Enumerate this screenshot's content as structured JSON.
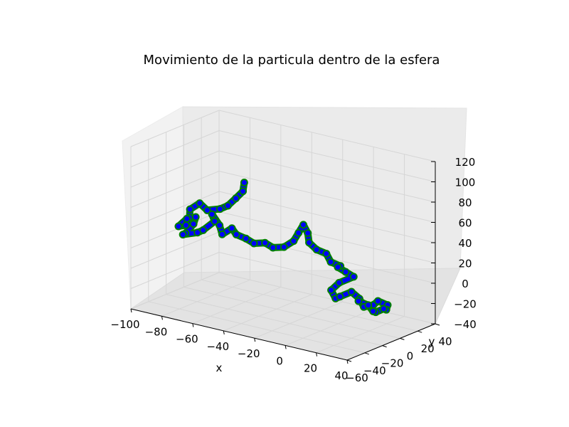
{
  "chart_data": {
    "type": "line",
    "projection": "3d",
    "title": "Movimiento de la particula dentro de la esfera",
    "xlabel": "x",
    "ylabel": "y",
    "zlabel": "",
    "xlim": [
      -100,
      40
    ],
    "ylim": [
      -60,
      40
    ],
    "zlim": [
      -40,
      120
    ],
    "xticks": [
      "−100",
      "−80",
      "−60",
      "−40",
      "−20",
      "0",
      "20",
      "40"
    ],
    "yticks": [
      "−60",
      "−40",
      "−20",
      "0",
      "20",
      "40"
    ],
    "zticks": [
      "−40",
      "−20",
      "0",
      "20",
      "40",
      "60",
      "80",
      "100",
      "120"
    ],
    "grid": true,
    "legend": "none",
    "series": [
      {
        "style": "line",
        "color": "#0000ff",
        "marker_edge_color": "#008000",
        "points": [
          [
            -58,
            -5,
            80
          ],
          [
            -60,
            -3,
            70
          ],
          [
            -64,
            -4,
            62
          ],
          [
            -68,
            -6,
            54
          ],
          [
            -72,
            -8,
            50
          ],
          [
            -78,
            -12,
            48
          ],
          [
            -84,
            -10,
            52
          ],
          [
            -88,
            -14,
            46
          ],
          [
            -86,
            -18,
            40
          ],
          [
            -90,
            -14,
            36
          ],
          [
            -92,
            -20,
            30
          ],
          [
            -86,
            -22,
            34
          ],
          [
            -82,
            -18,
            42
          ],
          [
            -80,
            -24,
            38
          ],
          [
            -84,
            -26,
            28
          ],
          [
            -88,
            -22,
            24
          ],
          [
            -82,
            -16,
            26
          ],
          [
            -76,
            -20,
            32
          ],
          [
            -72,
            -14,
            40
          ],
          [
            -76,
            -10,
            44
          ],
          [
            -70,
            -12,
            36
          ],
          [
            -66,
            -16,
            30
          ],
          [
            -62,
            -12,
            36
          ],
          [
            -58,
            -14,
            32
          ],
          [
            -54,
            -10,
            28
          ],
          [
            -50,
            -8,
            24
          ],
          [
            -44,
            -6,
            26
          ],
          [
            -40,
            -4,
            22
          ],
          [
            -34,
            -2,
            24
          ],
          [
            -30,
            2,
            30
          ],
          [
            -28,
            4,
            38
          ],
          [
            -26,
            6,
            46
          ],
          [
            -22,
            4,
            40
          ],
          [
            -20,
            2,
            32
          ],
          [
            -14,
            0,
            28
          ],
          [
            -10,
            4,
            24
          ],
          [
            -6,
            2,
            18
          ],
          [
            -2,
            6,
            14
          ],
          [
            -6,
            10,
            10
          ],
          [
            -2,
            12,
            6
          ],
          [
            2,
            14,
            2
          ],
          [
            -4,
            8,
            -4
          ],
          [
            -8,
            6,
            -12
          ],
          [
            -4,
            4,
            -18
          ],
          [
            0,
            2,
            -14
          ],
          [
            4,
            8,
            -10
          ],
          [
            8,
            10,
            -16
          ],
          [
            12,
            8,
            -22
          ],
          [
            16,
            12,
            -20
          ],
          [
            20,
            10,
            -14
          ],
          [
            24,
            14,
            -18
          ],
          [
            22,
            16,
            -24
          ],
          [
            18,
            20,
            -26
          ],
          [
            14,
            18,
            -30
          ],
          [
            10,
            22,
            -32
          ],
          [
            8,
            20,
            -26
          ],
          [
            4,
            16,
            -22
          ]
        ]
      }
    ]
  }
}
